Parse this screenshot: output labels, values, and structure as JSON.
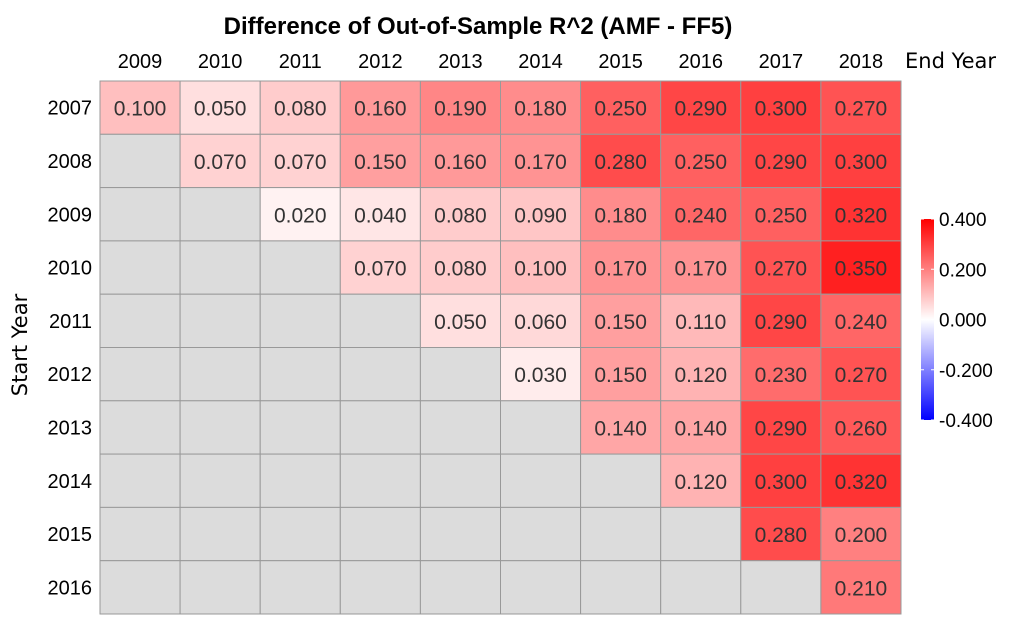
{
  "chart_data": {
    "type": "heatmap",
    "title": "Difference of Out-of-Sample R^2 (AMF - FF5)",
    "xlabel": "End Year",
    "ylabel": "Start Year",
    "x_categories": [
      "2009",
      "2010",
      "2011",
      "2012",
      "2013",
      "2014",
      "2015",
      "2016",
      "2017",
      "2018"
    ],
    "y_categories": [
      "2007",
      "2008",
      "2009",
      "2010",
      "2011",
      "2012",
      "2013",
      "2014",
      "2015",
      "2016"
    ],
    "values": [
      [
        0.1,
        0.05,
        0.08,
        0.16,
        0.19,
        0.18,
        0.25,
        0.29,
        0.3,
        0.27
      ],
      [
        null,
        0.07,
        0.07,
        0.15,
        0.16,
        0.17,
        0.28,
        0.25,
        0.29,
        0.3
      ],
      [
        null,
        null,
        0.02,
        0.04,
        0.08,
        0.09,
        0.18,
        0.24,
        0.25,
        0.32
      ],
      [
        null,
        null,
        null,
        0.07,
        0.08,
        0.1,
        0.17,
        0.17,
        0.27,
        0.35
      ],
      [
        null,
        null,
        null,
        null,
        0.05,
        0.06,
        0.15,
        0.11,
        0.29,
        0.24
      ],
      [
        null,
        null,
        null,
        null,
        null,
        0.03,
        0.15,
        0.12,
        0.23,
        0.27
      ],
      [
        null,
        null,
        null,
        null,
        null,
        null,
        0.14,
        0.14,
        0.29,
        0.26
      ],
      [
        null,
        null,
        null,
        null,
        null,
        null,
        null,
        0.12,
        0.3,
        0.32
      ],
      [
        null,
        null,
        null,
        null,
        null,
        null,
        null,
        null,
        0.28,
        0.2
      ],
      [
        null,
        null,
        null,
        null,
        null,
        null,
        null,
        null,
        null,
        0.21
      ]
    ],
    "color_scale": {
      "min": -0.4,
      "max": 0.4,
      "low_color": "#0000ff",
      "mid_color": "#ffffff",
      "high_color": "#ff0000",
      "missing_color": "#dcdcdc",
      "ticks": [
        "0.400",
        "0.200",
        "0.000",
        "-0.200",
        "-0.400"
      ]
    },
    "grid_color": "#999999",
    "legend_position": "right"
  }
}
